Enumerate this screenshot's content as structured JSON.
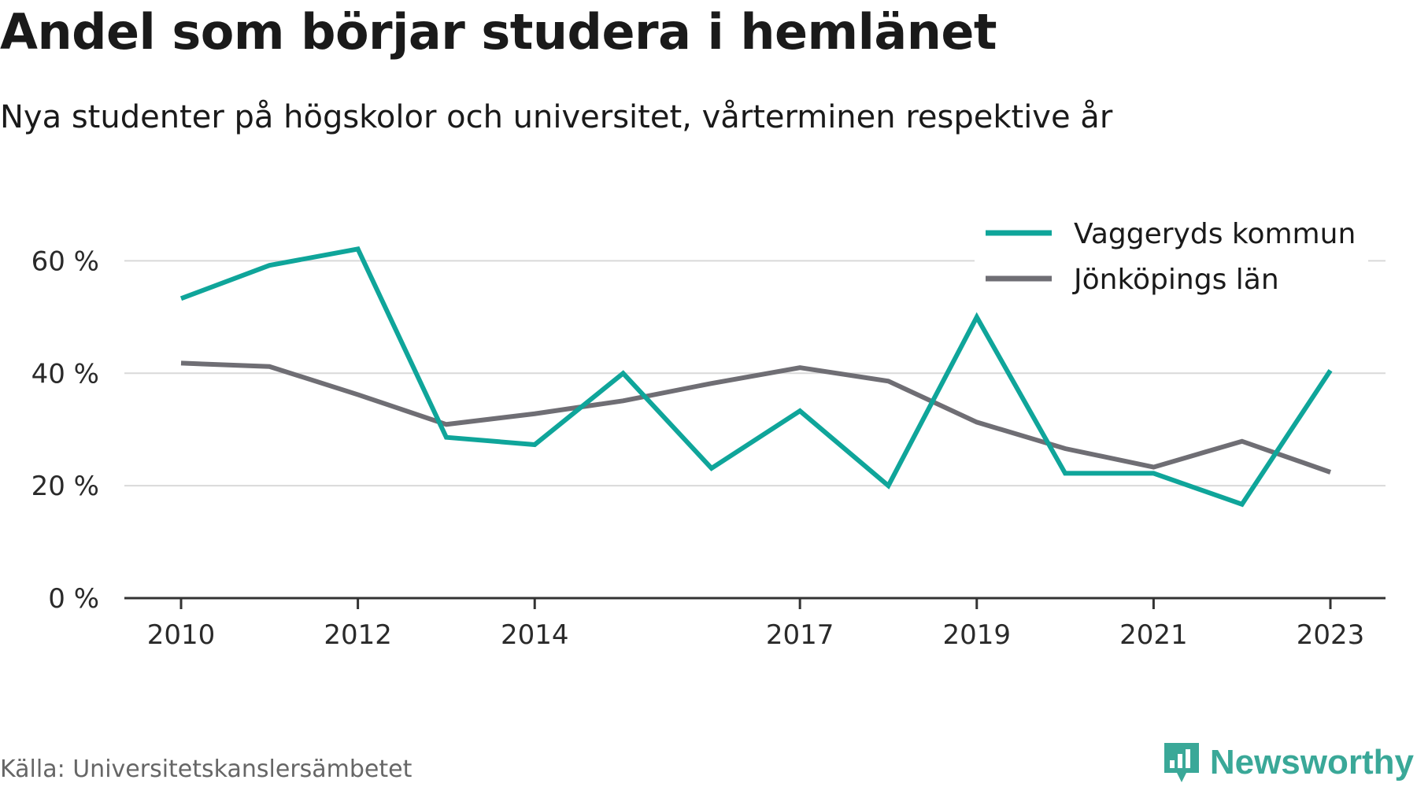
{
  "title": "Andel som börjar studera i hemlänet",
  "subtitle": "Nya studenter på högskolor och universitet, vårterminen respektive år",
  "source": "Källa: Universitetskanslersämbetet",
  "brand": {
    "name": "Newsworthy",
    "icon": "newsworthy-logo-icon",
    "color": "#3aa898"
  },
  "chart_data": {
    "type": "line",
    "x": [
      2010,
      2011,
      2012,
      2013,
      2014,
      2015,
      2016,
      2017,
      2018,
      2019,
      2020,
      2021,
      2022,
      2023
    ],
    "x_ticks": [
      2010,
      2012,
      2014,
      2017,
      2019,
      2021,
      2023
    ],
    "y_ticks": [
      0,
      20,
      40,
      60
    ],
    "y_tick_labels": [
      "0 %",
      "20 %",
      "40 %",
      "60 %"
    ],
    "ylim": [
      0,
      70
    ],
    "grid": "horizontal",
    "legend_position": "top-right",
    "series": [
      {
        "name": "Vaggeryds kommun",
        "color": "#0fa59a",
        "values": [
          53.3,
          59.2,
          62.1,
          28.6,
          27.3,
          40.0,
          23.1,
          33.3,
          20.0,
          50.0,
          22.2,
          22.2,
          16.7,
          40.5
        ]
      },
      {
        "name": "Jönköpings län",
        "color": "#6f6e74",
        "values": [
          41.8,
          41.2,
          36.2,
          30.9,
          32.8,
          35.1,
          38.2,
          41.0,
          38.6,
          31.3,
          26.6,
          23.3,
          27.9,
          22.4
        ]
      }
    ]
  }
}
